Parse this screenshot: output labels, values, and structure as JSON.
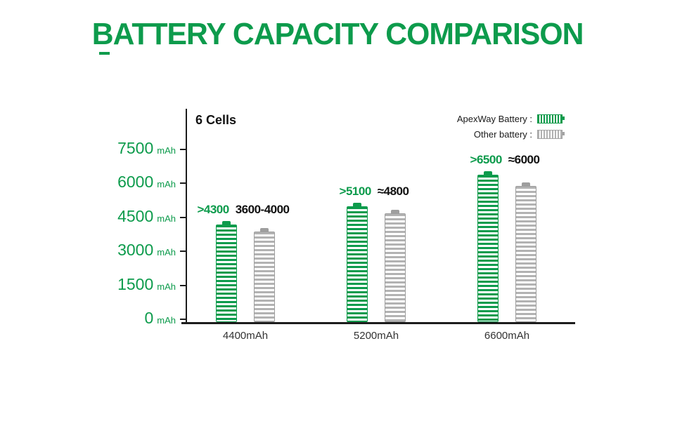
{
  "page": {
    "title": "BATTERY CAPACITY COMPARISON"
  },
  "chart": {
    "annotation": "6 Cells",
    "unit": "mAh",
    "legend": [
      {
        "label": "ApexWay Battery :"
      },
      {
        "label": "Other battery :"
      }
    ]
  },
  "chart_data": {
    "type": "bar",
    "title": "BATTERY CAPACITY COMPARISON",
    "categories": [
      "4400mAh",
      "5200mAh",
      "6600mAh"
    ],
    "series": [
      {
        "name": "ApexWay Battery",
        "color": "#0d9b4c",
        "border_color": "#0d9b4c",
        "values": [
          4300,
          5100,
          6500
        ],
        "value_labels": [
          ">4300",
          ">5100",
          ">6500"
        ]
      },
      {
        "name": "Other battery",
        "color": "#b2b2b2",
        "border_color": "#9e9e9e",
        "values": [
          4000,
          4800,
          6000
        ],
        "value_labels": [
          "3600-4000",
          "≈4800",
          "≈6000"
        ]
      }
    ],
    "ylabel": "mAh",
    "yticks": [
      0,
      1500,
      3000,
      4500,
      6000,
      7500
    ],
    "ylim": [
      0,
      7500
    ],
    "grid": false,
    "legend_position": "top-right",
    "annotation": "6 Cells"
  }
}
